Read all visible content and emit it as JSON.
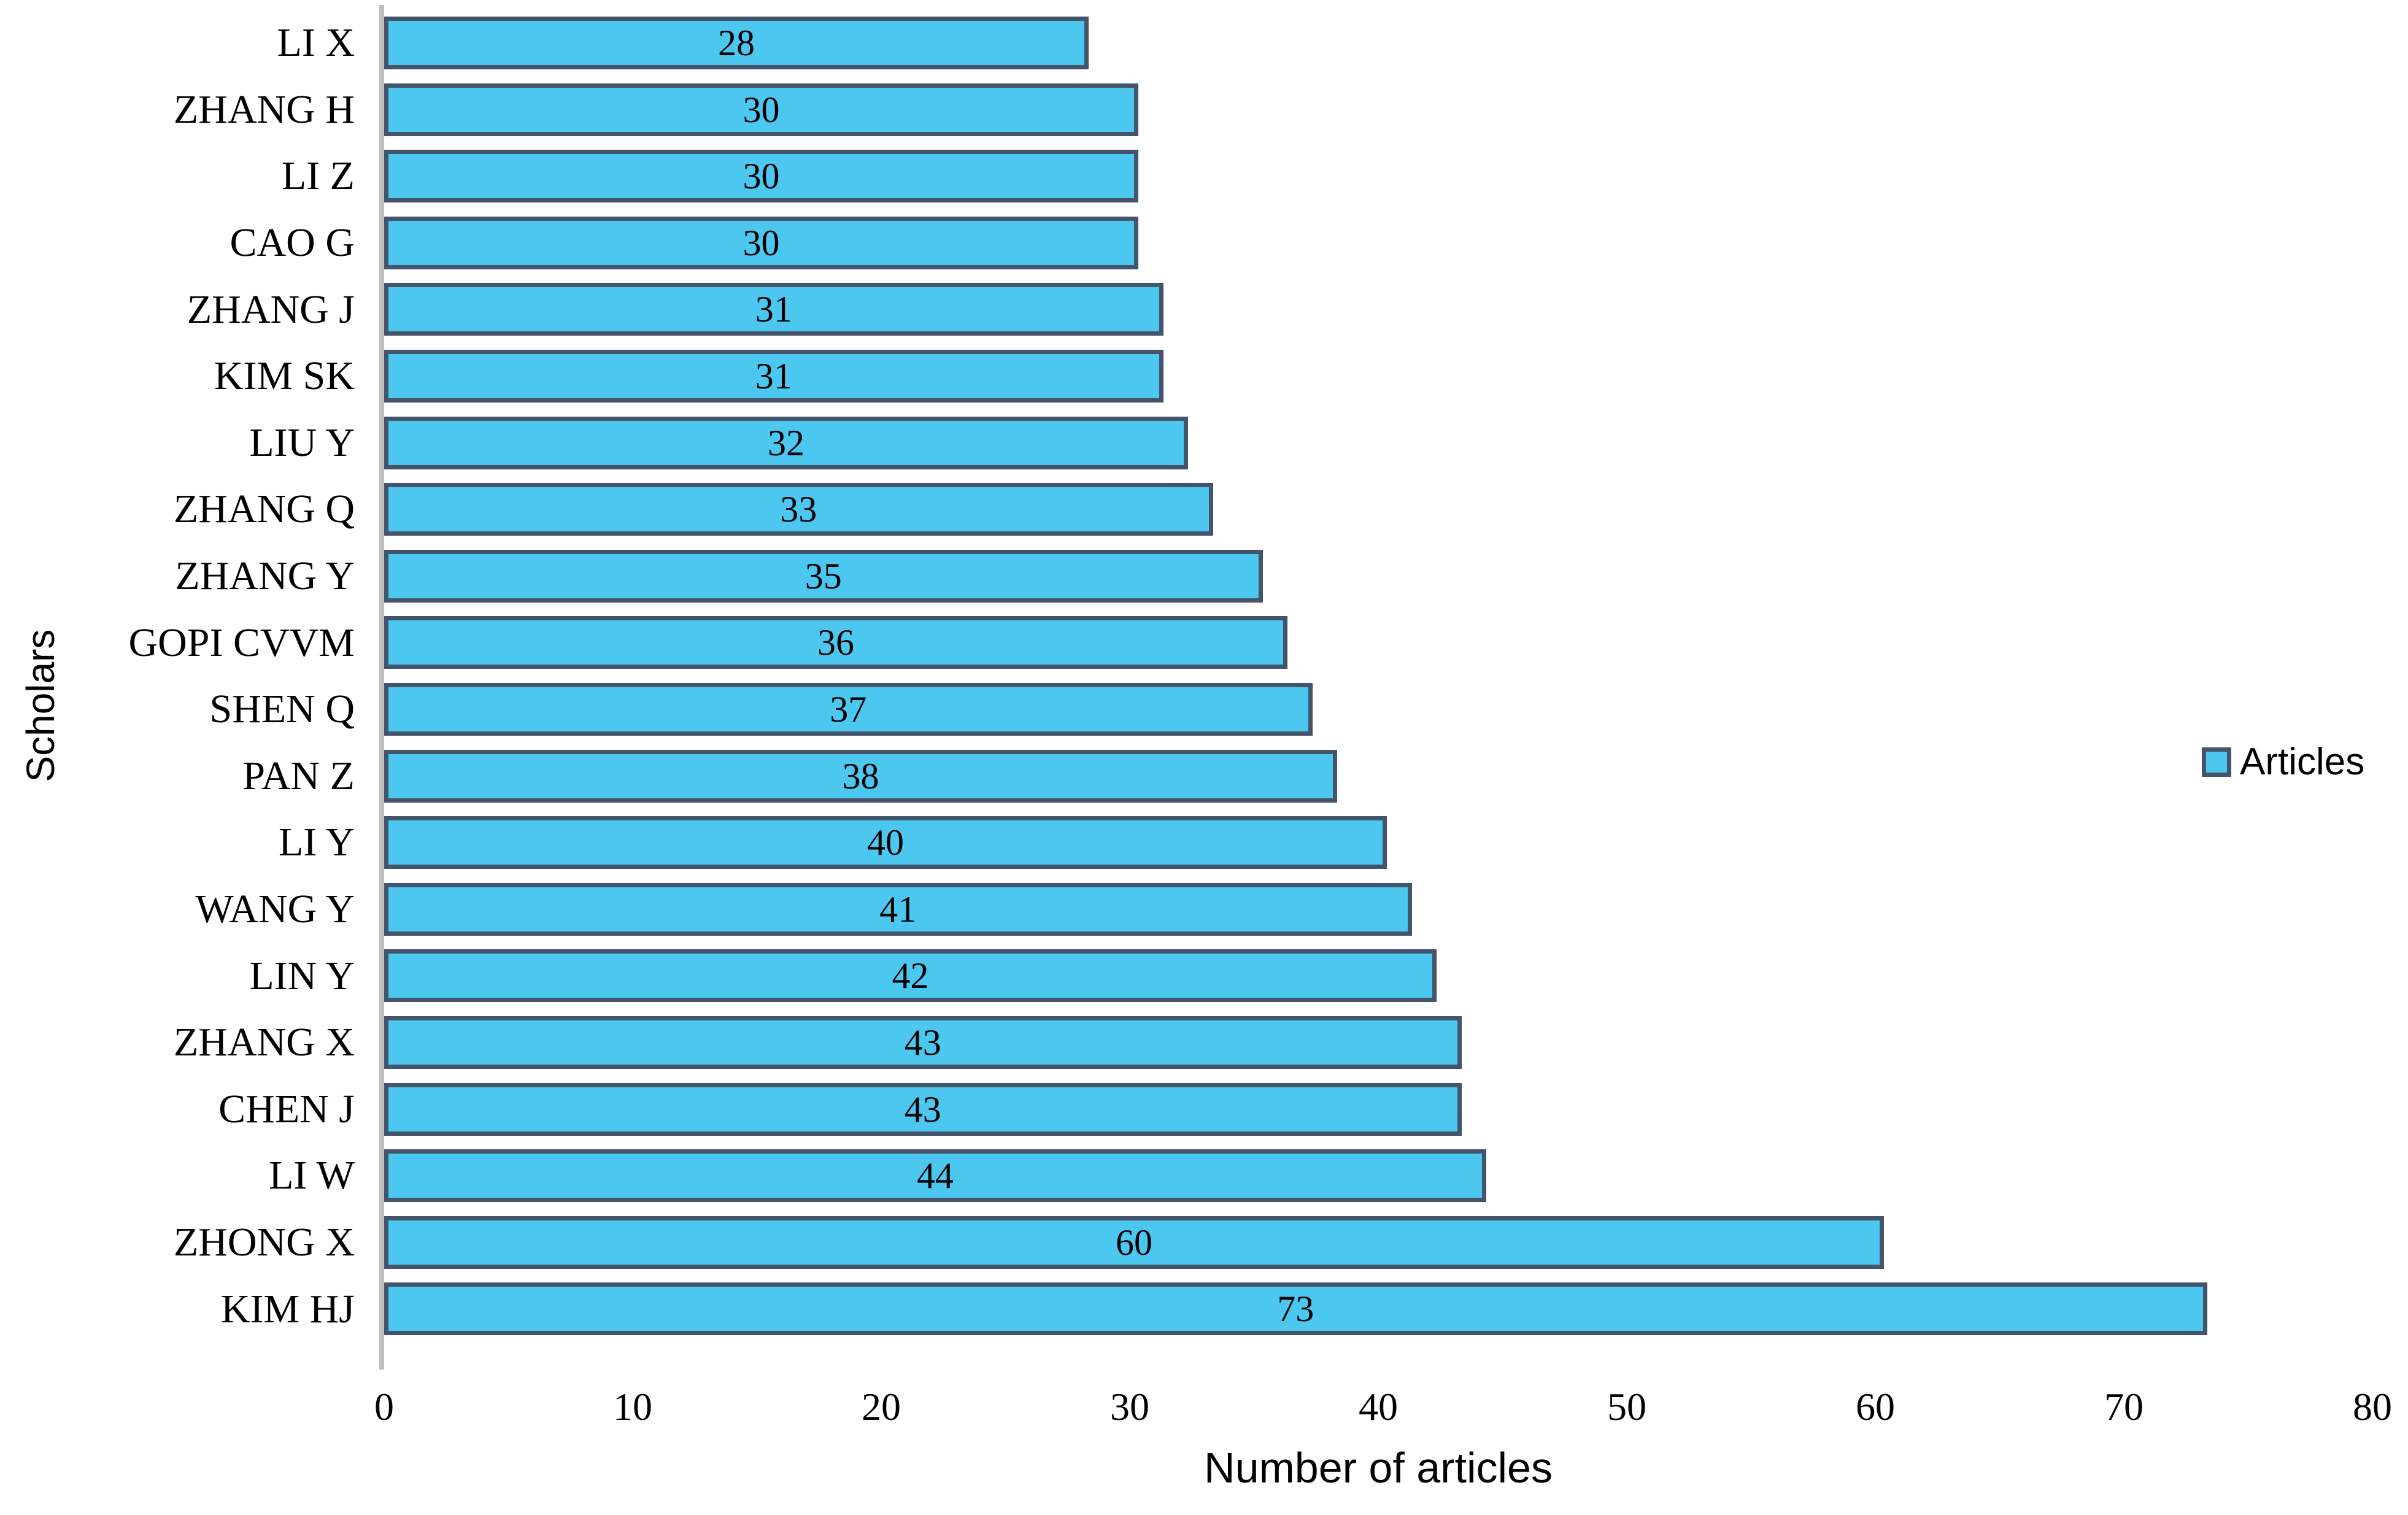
{
  "chart_data": {
    "type": "bar",
    "orientation": "horizontal",
    "categories": [
      "LI X",
      "ZHANG H",
      "LI Z",
      "CAO G",
      "ZHANG J",
      "KIM SK",
      "LIU Y",
      "ZHANG Q",
      "ZHANG Y",
      "GOPI CVVM",
      "SHEN Q",
      "PAN Z",
      "LI Y",
      "WANG Y",
      "LIN Y",
      "ZHANG X",
      "CHEN J",
      "LI W",
      "ZHONG X",
      "KIM HJ"
    ],
    "values": [
      28,
      30,
      30,
      30,
      31,
      31,
      32,
      33,
      35,
      36,
      37,
      38,
      40,
      41,
      42,
      43,
      43,
      44,
      60,
      73
    ],
    "series_name": "Articles",
    "title": "",
    "xlabel": "Number of articles",
    "ylabel": "Scholars",
    "xlim": [
      0,
      80
    ],
    "x_ticks": [
      "0",
      "10",
      "20",
      "30",
      "40",
      "50",
      "60",
      "70",
      "80"
    ],
    "grid": false,
    "data_labels": "inside-center",
    "legend_position": "right-middle"
  },
  "axes": {
    "x_title": "Number of articles",
    "y_title": "Scholars"
  },
  "legend": {
    "label": "Articles"
  },
  "colors": {
    "bar_fill": "#4BC7F0",
    "bar_border": "#44546A",
    "axis_line": "#BFBFBF",
    "text": "#000000"
  }
}
